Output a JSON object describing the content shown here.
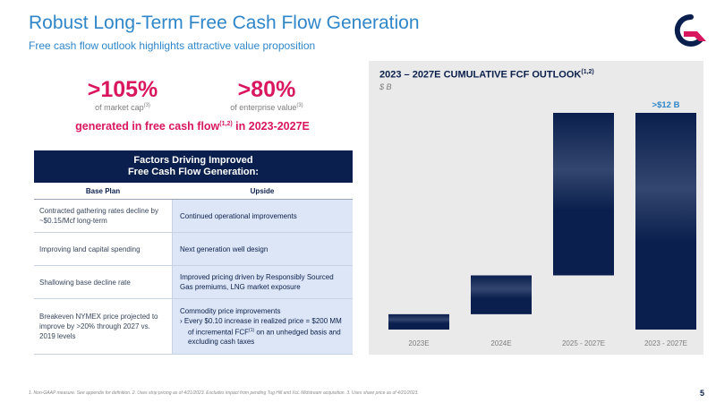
{
  "header": {
    "title": "Robust Long-Term Free Cash Flow Generation",
    "subtitle": "Free cash flow outlook highlights attractive value proposition"
  },
  "stats": [
    {
      "value": ">105%",
      "label": "of market cap",
      "ref": "(3)"
    },
    {
      "value": ">80%",
      "label": "of enterprise value",
      "ref": "(3)"
    }
  ],
  "generated": {
    "text": "generated in free cash flow",
    "ref": "(1,2)",
    "suffix": " in 2023-2027E"
  },
  "factors": {
    "title_line1": "Factors Driving Improved",
    "title_line2": "Free Cash Flow Generation:",
    "col_left": "Base Plan",
    "col_right": "Upside",
    "rows": [
      {
        "left": "Contracted gathering rates decline by ~$0.15/Mcf long-term",
        "right": "Continued operational improvements"
      },
      {
        "left": "Improving land capital spending",
        "right": "Next generation well design"
      },
      {
        "left": "Shallowing base decline rate",
        "right": "Improved pricing driven by Responsibly Sourced Gas premiums, LNG market exposure"
      },
      {
        "left": "Breakeven NYMEX price projected to improve by >20% through 2027 vs. 2019 levels",
        "right_head": "Commodity price improvements",
        "bullet_a": "›   Every $0.10 increase in realized price = $200 MM of incremental FCF",
        "bullet_ref": "(1)",
        "bullet_b": " on an unhedged basis and excluding cash taxes"
      }
    ]
  },
  "chart_data": {
    "type": "waterfall",
    "title": "2023 – 2027E CUMULATIVE FCF OUTLOOK",
    "title_ref": "(1,2)",
    "unit": "$ B",
    "categories": [
      "2023E",
      "2024E",
      "2025 - 2027E",
      "2023 - 2027E"
    ],
    "bars": [
      {
        "start": 0,
        "end": 0.85
      },
      {
        "start": 0.85,
        "end": 3.0
      },
      {
        "start": 3.0,
        "end": 12.0
      },
      {
        "start": 0,
        "end": 12.0
      }
    ],
    "total_label": ">$12 B",
    "ylim": [
      0,
      12.0
    ],
    "color": "#0a1f4d",
    "label_color": "#2f86c9"
  },
  "footer": {
    "footnote": "1. Non-GAAP measure. See appendix for definition. 2. Uses strip pricing as of 4/21/2023. Excludes impact from pending Tug Hill and XcL Midstream acquisition. 3. Uses share price as of 4/21/2023.",
    "page": "5"
  }
}
